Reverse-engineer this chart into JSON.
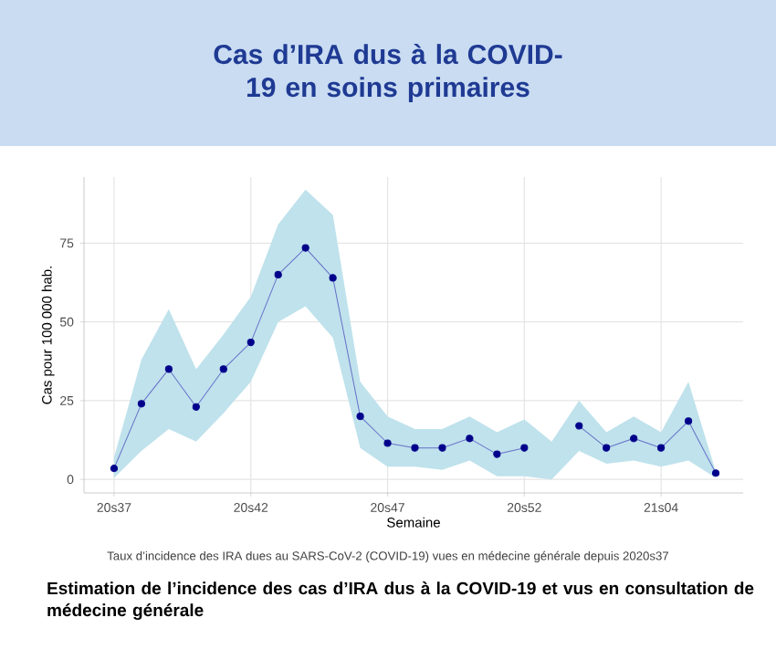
{
  "chart_data": {
    "type": "line",
    "title": "Cas d’IRA dus à la COVID-19 en soins primaires",
    "xlabel": "Semaine",
    "ylabel": "Cas pour 100 000 hab.",
    "categories": [
      "20s37",
      null,
      null,
      null,
      null,
      "20s42",
      null,
      null,
      null,
      null,
      "20s47",
      null,
      null,
      null,
      null,
      "20s52",
      null,
      null,
      null,
      null,
      "21s04",
      null,
      null
    ],
    "series": [
      {
        "color": "#00008b",
        "values": [
          3.5,
          24,
          35,
          23,
          35,
          43.5,
          65,
          73.5,
          64,
          20,
          11.5,
          10,
          10,
          13,
          8,
          10,
          null,
          17,
          10,
          13,
          10,
          18.5,
          2
        ],
        "lower": [
          0.5,
          9,
          16,
          12,
          21,
          31,
          50,
          55,
          45,
          10,
          4,
          4,
          3,
          6,
          1,
          1,
          0,
          9,
          5,
          6,
          4,
          6,
          0.5
        ],
        "upper": [
          7,
          38,
          54,
          35,
          46,
          58,
          81,
          92,
          84,
          31,
          20,
          16,
          16,
          20,
          15,
          19,
          12,
          25,
          15,
          20,
          15,
          31,
          2.5
        ]
      }
    ],
    "ylim": [
      -4.3,
      96
    ],
    "yticks": [
      0,
      25,
      50,
      75
    ],
    "grid": true,
    "marker": "circle",
    "line_style": "solid",
    "annotations": [
      "Taux d’incidence des IRA dues au SARS-CoV-2 (COVID-19) vues en médecine générale depuis 2020s37",
      "Estimation de l’incidence des cas d’IRA dus à la COVID-19 et vus en consultation de médecine générale"
    ]
  }
}
